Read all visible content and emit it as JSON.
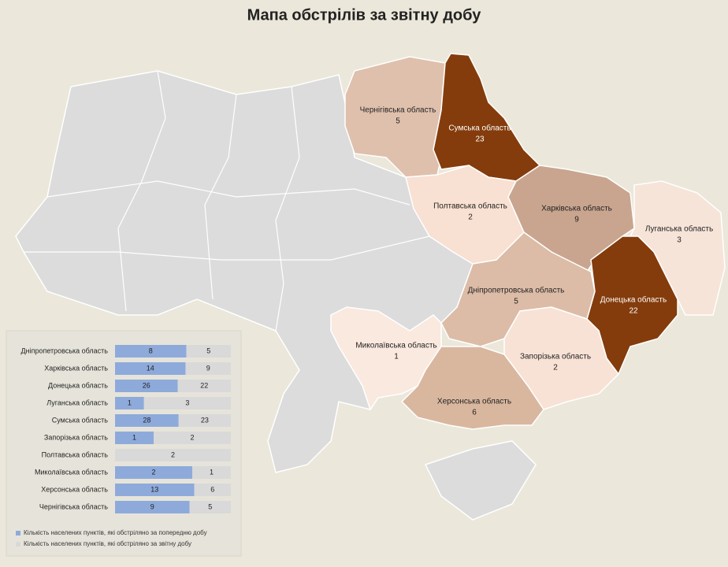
{
  "title": "Мапа обстрілів за звітну добу",
  "map": {
    "regions": [
      {
        "name": "Чернігівська область",
        "value": 5,
        "color": "#dfc0ac"
      },
      {
        "name": "Сумська область",
        "value": 23,
        "color": "#843c0c"
      },
      {
        "name": "Полтавська область",
        "value": 2,
        "color": "#f8e0d2"
      },
      {
        "name": "Харківська область",
        "value": 9,
        "color": "#c9a58f"
      },
      {
        "name": "Луганська область",
        "value": 3,
        "color": "#f6e4d8"
      },
      {
        "name": "Донецька область",
        "value": 22,
        "color": "#843c0c"
      },
      {
        "name": "Дніпропетровська область",
        "value": 5,
        "color": "#dcbca6"
      },
      {
        "name": "Запорізька область",
        "value": 2,
        "color": "#f8e2d5"
      },
      {
        "name": "Миколаївська область",
        "value": 1,
        "color": "#fae9df"
      },
      {
        "name": "Херсонська область",
        "value": 6,
        "color": "#d9b79f"
      }
    ]
  },
  "chart_data": {
    "type": "bar",
    "orientation": "horizontal",
    "stacking": "percent",
    "categories": [
      "Дніпропетровська область",
      "Харківська область",
      "Донецька область",
      "Луганська область",
      "Сумська область",
      "Запорізька область",
      "Полтавська область",
      "Миколаївська область",
      "Херсонська область",
      "Чернігівська область"
    ],
    "series": [
      {
        "name": "Кількість населених пунктів, які обстріляно за попередню добу",
        "color": "#8eaadb",
        "values": [
          8,
          14,
          26,
          1,
          28,
          1,
          null,
          2,
          13,
          9
        ]
      },
      {
        "name": "Кількість населених пунктів, які обстріляно за звітну добу",
        "color": "#d9d9d9",
        "values": [
          5,
          9,
          22,
          3,
          23,
          2,
          2,
          1,
          6,
          5
        ]
      }
    ]
  }
}
